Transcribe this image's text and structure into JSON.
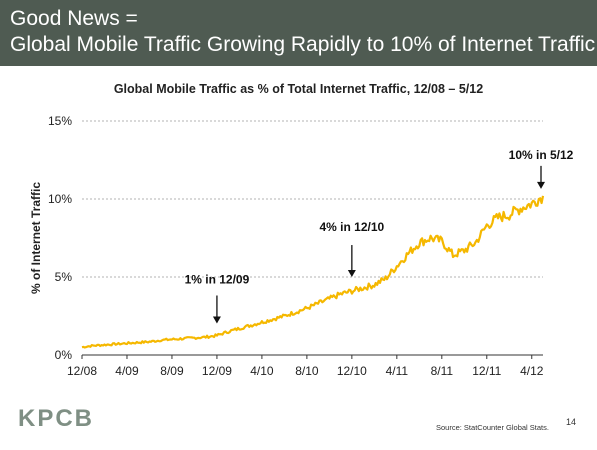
{
  "slide": {
    "headline_line1": "Good News =",
    "headline_line2": "Global Mobile Traffic Growing Rapidly to 10% of Internet Traffic",
    "logo_text": "KPCB",
    "source": "Source: StatCounter Global Stats.",
    "page_number": "14",
    "header_color": "#4f5b52",
    "logo_color": "#7f8f84"
  },
  "chart_data": {
    "type": "line",
    "title": "Global Mobile Traffic as % of Total Internet Traffic, 12/08 – 5/12",
    "ylabel": "% of Internet Traffic",
    "xlabel": "",
    "x_start": "12/08",
    "x_end": "5/12",
    "ylim": [
      0,
      15
    ],
    "yticks": [
      "0%",
      "5%",
      "10%",
      "15%"
    ],
    "ytick_values": [
      0,
      5,
      10,
      15
    ],
    "xticks": [
      "12/08",
      "4/09",
      "8/09",
      "12/09",
      "4/10",
      "8/10",
      "12/10",
      "4/11",
      "8/11",
      "12/11",
      "4/12"
    ],
    "grid": "horizontal dashed",
    "line_color": "#f5b800",
    "series": [
      {
        "values": [
          [
            "12/08",
            0.5
          ],
          [
            "1/09",
            0.6
          ],
          [
            "2/09",
            0.65
          ],
          [
            "3/09",
            0.7
          ],
          [
            "4/09",
            0.75
          ],
          [
            "5/09",
            0.8
          ],
          [
            "6/09",
            0.85
          ],
          [
            "7/09",
            0.95
          ],
          [
            "8/09",
            1.0
          ],
          [
            "9/09",
            1.05
          ],
          [
            "10/09",
            1.1
          ],
          [
            "11/09",
            1.15
          ],
          [
            "12/09",
            1.25
          ],
          [
            "1/10",
            1.5
          ],
          [
            "2/10",
            1.7
          ],
          [
            "3/10",
            1.9
          ],
          [
            "4/10",
            2.1
          ],
          [
            "5/10",
            2.3
          ],
          [
            "6/10",
            2.5
          ],
          [
            "7/10",
            2.75
          ],
          [
            "8/10",
            3.0
          ],
          [
            "9/10",
            3.3
          ],
          [
            "10/10",
            3.6
          ],
          [
            "11/10",
            3.9
          ],
          [
            "12/10",
            4.1
          ],
          [
            "1/11",
            4.3
          ],
          [
            "2/11",
            4.5
          ],
          [
            "3/11",
            4.9
          ],
          [
            "4/11",
            5.7
          ],
          [
            "5/11",
            6.5
          ],
          [
            "6/11",
            7.2
          ],
          [
            "7/11",
            7.5
          ],
          [
            "8/11",
            7.3
          ],
          [
            "9/11",
            6.4
          ],
          [
            "10/11",
            6.7
          ],
          [
            "11/11",
            7.2
          ],
          [
            "12/11",
            8.3
          ],
          [
            "1/12",
            8.8
          ],
          [
            "2/12",
            9.0
          ],
          [
            "3/12",
            9.4
          ],
          [
            "4/12",
            9.7
          ],
          [
            "5/12",
            10.2
          ]
        ]
      }
    ],
    "annotations": [
      {
        "text": "1% in 12/09",
        "x": "12/09",
        "y": 1.25
      },
      {
        "text": "4% in 12/10",
        "x": "12/10",
        "y": 4.1
      },
      {
        "text": "10% in 5/12",
        "x": "5/12",
        "y": 10.2
      }
    ]
  }
}
